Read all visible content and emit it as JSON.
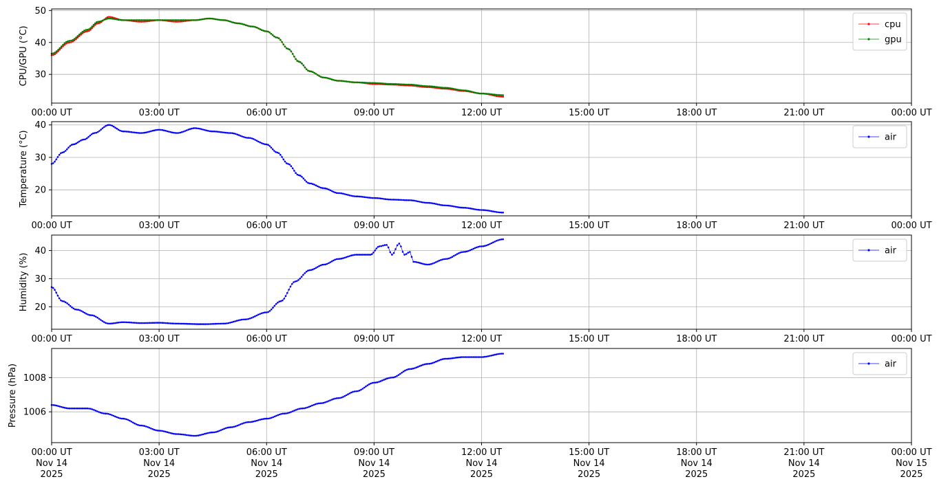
{
  "chart_data": [
    {
      "type": "line",
      "ylabel": "CPU/GPU (°C)",
      "ylim": [
        21,
        50.5
      ],
      "yticks": [
        30,
        40,
        50
      ],
      "xlim": [
        0,
        24
      ],
      "xtick_labels": [
        "00:00 UT",
        "03:00 UT",
        "06:00 UT",
        "09:00 UT",
        "12:00 UT",
        "15:00 UT",
        "18:00 UT",
        "21:00 UT",
        "00:00 UT"
      ],
      "grid": true,
      "legend": "top-right",
      "series": [
        {
          "name": "cpu",
          "color": "#ff0000",
          "x": [
            0,
            0.5,
            1.0,
            1.3,
            1.6,
            2.0,
            2.5,
            3.0,
            3.5,
            4.0,
            4.4,
            4.8,
            5.2,
            5.6,
            6.0,
            6.3,
            6.6,
            6.9,
            7.2,
            7.6,
            8.0,
            8.5,
            9.0,
            9.5,
            10.0,
            10.5,
            11.0,
            11.5,
            12.0,
            12.6
          ],
          "y": [
            36,
            40,
            43.5,
            46,
            48,
            47,
            46.5,
            47,
            46.5,
            47,
            47.5,
            47,
            46,
            45,
            43.5,
            41.5,
            38,
            34,
            31,
            29,
            28,
            27.5,
            27,
            26.8,
            26.5,
            26,
            25.5,
            24.8,
            24,
            23
          ]
        },
        {
          "name": "gpu",
          "color": "#008000",
          "x": [
            0,
            0.5,
            1.0,
            1.3,
            1.6,
            2.0,
            2.5,
            3.0,
            3.5,
            4.0,
            4.4,
            4.8,
            5.2,
            5.6,
            6.0,
            6.3,
            6.6,
            6.9,
            7.2,
            7.6,
            8.0,
            8.5,
            9.0,
            9.5,
            10.0,
            10.5,
            11.0,
            11.5,
            12.0,
            12.6
          ],
          "y": [
            36.5,
            40.5,
            44,
            46.5,
            47.5,
            47,
            47,
            47,
            47,
            47,
            47.5,
            47,
            46,
            45,
            43.5,
            41.5,
            38,
            34,
            31,
            29,
            28,
            27.5,
            27.3,
            27,
            26.8,
            26.3,
            25.8,
            25,
            24,
            23.5
          ]
        }
      ]
    },
    {
      "type": "line",
      "ylabel": "Temperature (°C)",
      "ylim": [
        12,
        41
      ],
      "yticks": [
        20,
        30,
        40
      ],
      "xlim": [
        0,
        24
      ],
      "xtick_labels": [
        "00:00 UT",
        "03:00 UT",
        "06:00 UT",
        "09:00 UT",
        "12:00 UT",
        "15:00 UT",
        "18:00 UT",
        "21:00 UT",
        "00:00 UT"
      ],
      "grid": true,
      "legend": "top-right",
      "series": [
        {
          "name": "air",
          "color": "#0000ff",
          "x": [
            0,
            0.3,
            0.6,
            0.9,
            1.2,
            1.6,
            2.0,
            2.5,
            3.0,
            3.5,
            4.0,
            4.5,
            5.0,
            5.5,
            6.0,
            6.3,
            6.6,
            6.9,
            7.2,
            7.6,
            8.0,
            8.5,
            9.0,
            9.5,
            10.0,
            10.5,
            11.0,
            11.5,
            12.0,
            12.6
          ],
          "y": [
            28,
            31.5,
            34,
            35.5,
            37.5,
            40,
            38,
            37.5,
            38.5,
            37.5,
            39,
            38,
            37.5,
            36,
            34,
            31.5,
            28,
            24.5,
            22,
            20.5,
            19,
            18,
            17.5,
            17,
            16.8,
            16,
            15.2,
            14.5,
            13.8,
            13
          ]
        }
      ]
    },
    {
      "type": "line",
      "ylabel": "Humidity (%)",
      "ylim": [
        12,
        45.5
      ],
      "yticks": [
        20,
        30,
        40
      ],
      "xlim": [
        0,
        24
      ],
      "xtick_labels": [
        "00:00 UT",
        "03:00 UT",
        "06:00 UT",
        "09:00 UT",
        "12:00 UT",
        "15:00 UT",
        "18:00 UT",
        "21:00 UT",
        "00:00 UT"
      ],
      "grid": true,
      "legend": "top-right",
      "series": [
        {
          "name": "air",
          "color": "#0000ff",
          "x": [
            0,
            0.3,
            0.7,
            1.1,
            1.6,
            2.0,
            2.5,
            3.0,
            3.5,
            4.2,
            4.8,
            5.4,
            6.0,
            6.4,
            6.8,
            7.2,
            7.6,
            8.0,
            8.5,
            8.9,
            9.15,
            9.35,
            9.5,
            9.7,
            9.85,
            10.0,
            10.1,
            10.5,
            11.0,
            11.5,
            12.0,
            12.6
          ],
          "y": [
            27,
            22,
            19,
            17,
            14,
            14.5,
            14.2,
            14.3,
            14,
            13.8,
            14,
            15.5,
            18,
            22,
            29,
            33,
            35,
            37,
            38.5,
            38.5,
            41.5,
            42,
            38.5,
            42.5,
            38.5,
            39.5,
            36,
            35,
            37,
            39.5,
            41.5,
            44
          ]
        }
      ]
    },
    {
      "type": "line",
      "ylabel": "Pressure (hPa)",
      "ylim": [
        1004.2,
        1009.7
      ],
      "yticks": [
        1006,
        1008
      ],
      "yticklabels": [
        "1006",
        "1008"
      ],
      "xlim": [
        0,
        24
      ],
      "xtick_labels": [
        "00:00 UT\nNov 14\n2025",
        "03:00 UT\nNov 14\n2025",
        "06:00 UT\nNov 14\n2025",
        "09:00 UT\nNov 14\n2025",
        "12:00 UT\nNov 14\n2025",
        "15:00 UT\nNov 14\n2025",
        "18:00 UT\nNov 14\n2025",
        "21:00 UT\nNov 14\n2025",
        "00:00 UT\nNov 15\n2025"
      ],
      "grid": true,
      "legend": "top-right",
      "series": [
        {
          "name": "air",
          "color": "#0000ff",
          "x": [
            0,
            0.5,
            1.0,
            1.5,
            2.0,
            2.5,
            3.0,
            3.5,
            4.0,
            4.5,
            5.0,
            5.5,
            6.0,
            6.5,
            7.0,
            7.5,
            8.0,
            8.5,
            9.0,
            9.5,
            10.0,
            10.5,
            11.0,
            11.5,
            12.0,
            12.6
          ],
          "y": [
            1006.4,
            1006.2,
            1006.2,
            1005.9,
            1005.6,
            1005.2,
            1004.9,
            1004.7,
            1004.6,
            1004.8,
            1005.1,
            1005.4,
            1005.6,
            1005.9,
            1006.2,
            1006.5,
            1006.8,
            1007.2,
            1007.7,
            1008.0,
            1008.5,
            1008.8,
            1009.1,
            1009.2,
            1009.2,
            1009.4
          ]
        }
      ]
    }
  ]
}
